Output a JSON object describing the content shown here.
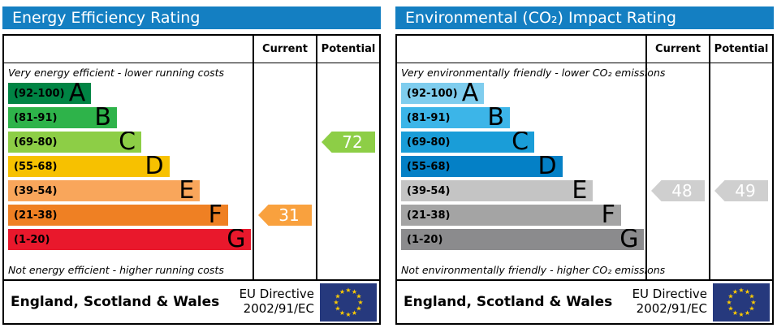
{
  "chart_data": [
    {
      "type": "bar",
      "title": "Energy Efficiency Rating",
      "title_bg": "#147fc2",
      "columns": {
        "current": "Current",
        "potential": "Potential"
      },
      "top_note": "Very energy efficient - lower running costs",
      "bottom_note": "Not energy efficient - higher running costs",
      "bands": [
        {
          "letter": "A",
          "range": "(92-100)",
          "min": 92,
          "max": 100,
          "color": "#008444",
          "width_pct": 34
        },
        {
          "letter": "B",
          "range": "(81-91)",
          "min": 81,
          "max": 91,
          "color": "#2eb34a",
          "width_pct": 44.5
        },
        {
          "letter": "C",
          "range": "(69-80)",
          "min": 69,
          "max": 80,
          "color": "#8dce46",
          "width_pct": 54.5
        },
        {
          "letter": "D",
          "range": "(55-68)",
          "min": 55,
          "max": 68,
          "color": "#f7c100",
          "width_pct": 66
        },
        {
          "letter": "E",
          "range": "(39-54)",
          "min": 39,
          "max": 54,
          "color": "#f9a65b",
          "width_pct": 78.5
        },
        {
          "letter": "F",
          "range": "(21-38)",
          "min": 21,
          "max": 38,
          "color": "#ef8023",
          "width_pct": 90
        },
        {
          "letter": "G",
          "range": "(1-20)",
          "min": 1,
          "max": 20,
          "color": "#e9182c",
          "width_pct": 99.5
        }
      ],
      "current": {
        "value": "31",
        "band": "F",
        "band_index": 5,
        "color": "#f9a13e"
      },
      "potential": {
        "value": "72",
        "band": "C",
        "band_index": 2,
        "color": "#8dce46"
      },
      "footer": {
        "region": "England, Scotland & Wales",
        "directive": [
          "EU Directive",
          "2002/91/EC"
        ],
        "flag_bg": "#26397d",
        "flag_star_color": "#ffcc00"
      }
    },
    {
      "type": "bar",
      "title": "Environmental (CO₂) Impact Rating",
      "title_bg": "#147fc2",
      "columns": {
        "current": "Current",
        "potential": "Potential"
      },
      "top_note": "Very environmentally friendly - lower CO₂ emissions",
      "bottom_note": "Not environmentally friendly - higher CO₂ emissions",
      "bands": [
        {
          "letter": "A",
          "range": "(92-100)",
          "min": 92,
          "max": 100,
          "color": "#7fcdee",
          "width_pct": 34
        },
        {
          "letter": "B",
          "range": "(81-91)",
          "min": 81,
          "max": 91,
          "color": "#3cb5e8",
          "width_pct": 44.5
        },
        {
          "letter": "C",
          "range": "(69-80)",
          "min": 69,
          "max": 80,
          "color": "#1a9dd8",
          "width_pct": 54.5
        },
        {
          "letter": "D",
          "range": "(55-68)",
          "min": 55,
          "max": 68,
          "color": "#0480c6",
          "width_pct": 66
        },
        {
          "letter": "E",
          "range": "(39-54)",
          "min": 39,
          "max": 54,
          "color": "#c4c4c4",
          "width_pct": 78.5
        },
        {
          "letter": "F",
          "range": "(21-38)",
          "min": 21,
          "max": 38,
          "color": "#a4a4a4",
          "width_pct": 90
        },
        {
          "letter": "G",
          "range": "(1-20)",
          "min": 1,
          "max": 20,
          "color": "#8b8b8d",
          "width_pct": 99.5
        }
      ],
      "current": {
        "value": "48",
        "band": "E",
        "band_index": 4,
        "color": "#cfcfcf"
      },
      "potential": {
        "value": "49",
        "band": "E",
        "band_index": 4,
        "color": "#cfcfcf"
      },
      "footer": {
        "region": "England, Scotland & Wales",
        "directive": [
          "EU Directive",
          "2002/91/EC"
        ],
        "flag_bg": "#26397d",
        "flag_star_color": "#ffcc00"
      }
    }
  ]
}
